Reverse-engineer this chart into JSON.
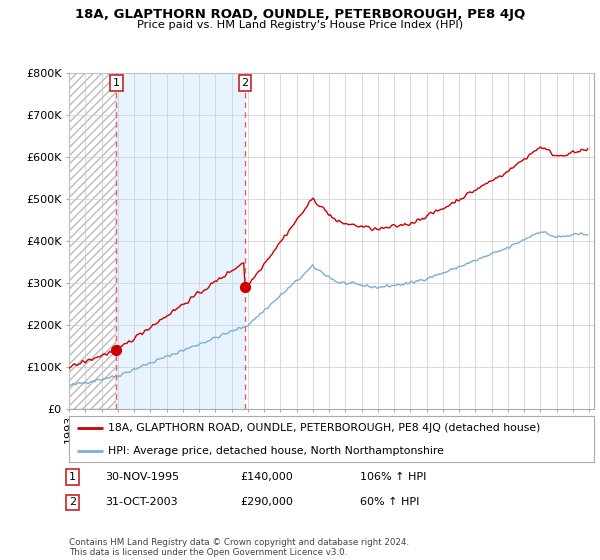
{
  "title": "18A, GLAPTHORN ROAD, OUNDLE, PETERBOROUGH, PE8 4JQ",
  "subtitle": "Price paid vs. HM Land Registry's House Price Index (HPI)",
  "legend_line1": "18A, GLAPTHORN ROAD, OUNDLE, PETERBOROUGH, PE8 4JQ (detached house)",
  "legend_line2": "HPI: Average price, detached house, North Northamptonshire",
  "annotation1_date": "30-NOV-1995",
  "annotation1_price": "£140,000",
  "annotation1_hpi": "106% ↑ HPI",
  "annotation2_date": "31-OCT-2003",
  "annotation2_price": "£290,000",
  "annotation2_hpi": "60% ↑ HPI",
  "footer": "Contains HM Land Registry data © Crown copyright and database right 2024.\nThis data is licensed under the Open Government Licence v3.0.",
  "sale1_year": 1995.917,
  "sale1_price": 140000,
  "sale2_year": 2003.833,
  "sale2_price": 290000,
  "y_ticks": [
    0,
    100000,
    200000,
    300000,
    400000,
    500000,
    600000,
    700000,
    800000
  ],
  "y_labels": [
    "£0",
    "£100K",
    "£200K",
    "£300K",
    "£400K",
    "£500K",
    "£600K",
    "£700K",
    "£800K"
  ],
  "x_min": 1993.0,
  "x_max": 2025.3,
  "y_min": 0,
  "y_max": 800000,
  "red_line_color": "#cc0000",
  "blue_line_color": "#7ab0d4",
  "background_color": "#ffffff",
  "hatch_color": "#bbbbbb",
  "light_blue_fill": "#ddeeff",
  "grid_color": "#cccccc",
  "dashed_line_color": "#e86060"
}
